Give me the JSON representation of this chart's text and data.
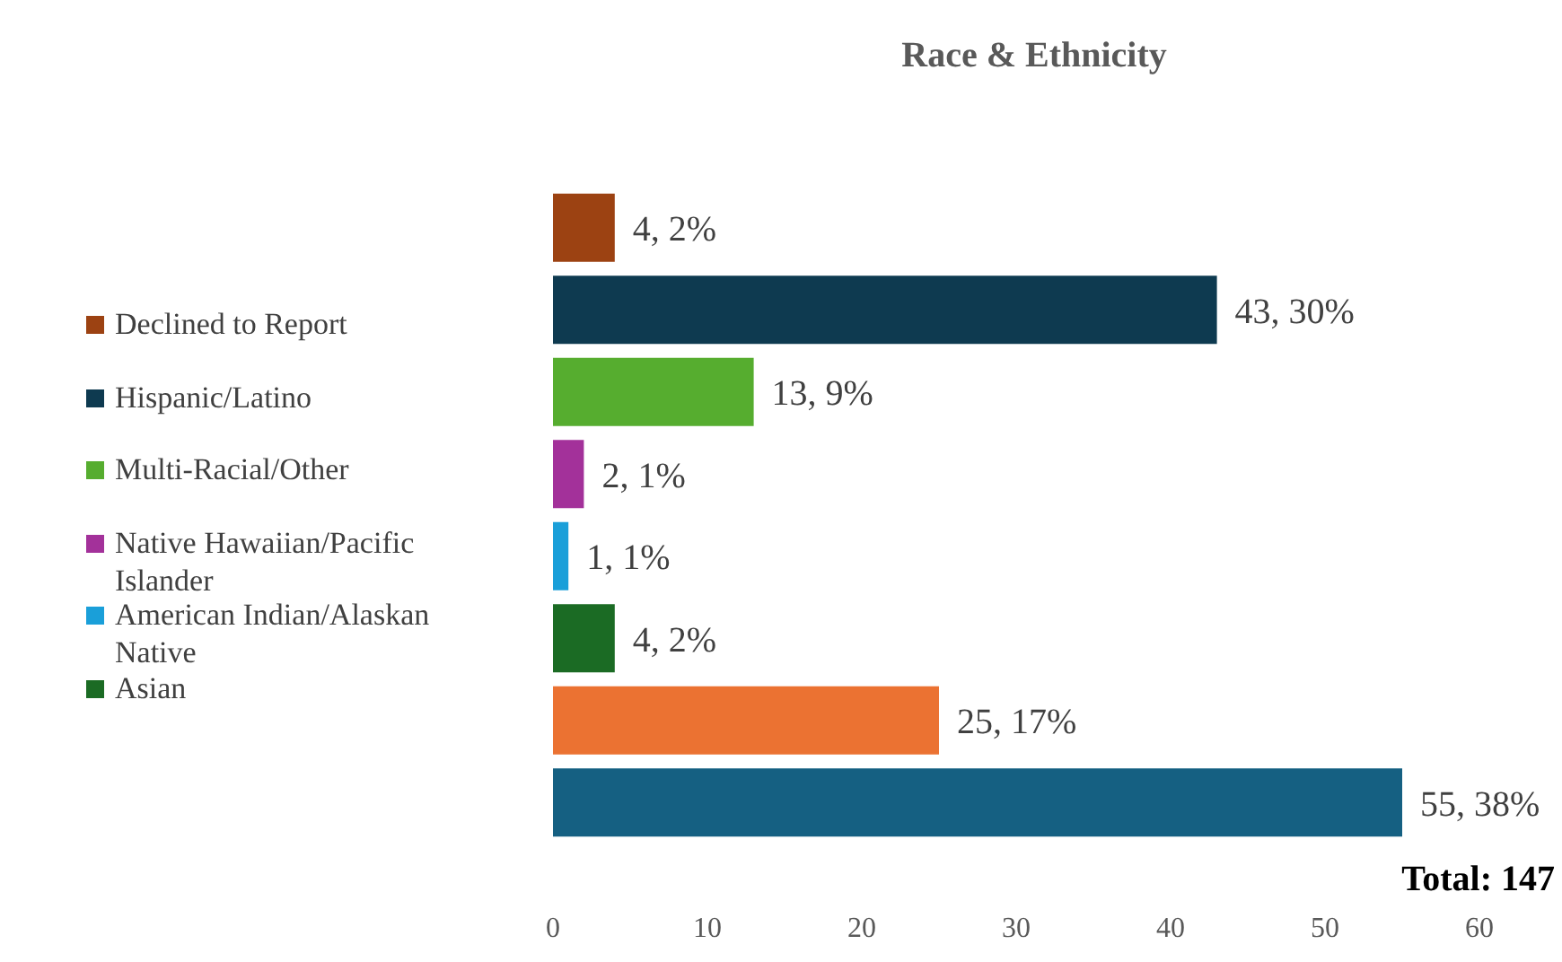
{
  "chart_data": {
    "type": "bar",
    "orientation": "horizontal",
    "stacked": true,
    "title": "Race & Ethnicity",
    "categories": [
      null,
      null,
      null,
      null,
      null,
      null,
      null,
      null
    ],
    "series": [
      {
        "name": "Declined to Report",
        "color": "#9c4212",
        "values": [
          4,
          null,
          null,
          null,
          null,
          null,
          null,
          null
        ],
        "value_labels": [
          "4, 2%",
          null,
          null,
          null,
          null,
          null,
          null,
          null
        ]
      },
      {
        "name": "Hispanic/Latino",
        "color": "#0e3a50",
        "values": [
          null,
          43,
          null,
          null,
          null,
          null,
          null,
          null
        ],
        "value_labels": [
          null,
          "43, 30%",
          null,
          null,
          null,
          null,
          null,
          null
        ]
      },
      {
        "name": "Multi-Racial/Other",
        "color": "#56ad2f",
        "values": [
          null,
          null,
          13,
          null,
          null,
          null,
          null,
          null
        ],
        "value_labels": [
          null,
          null,
          "13, 9%",
          null,
          null,
          null,
          null,
          null
        ]
      },
      {
        "name": "Native Hawaiian/Pacific Islander",
        "color": "#a3319a",
        "values": [
          null,
          null,
          null,
          2,
          null,
          null,
          null,
          null
        ],
        "value_labels": [
          null,
          null,
          null,
          "2, 1%",
          null,
          null,
          null,
          null
        ]
      },
      {
        "name": "American Indian/Alaskan Native",
        "color": "#1a9fd9",
        "values": [
          null,
          null,
          null,
          null,
          1,
          null,
          null,
          null
        ],
        "value_labels": [
          null,
          null,
          null,
          null,
          "1, 1%",
          null,
          null,
          null
        ]
      },
      {
        "name": "Asian",
        "color": "#1b6b24",
        "values": [
          null,
          null,
          null,
          null,
          null,
          4,
          null,
          null
        ],
        "value_labels": [
          null,
          null,
          null,
          null,
          null,
          "4, 2%",
          null,
          null
        ]
      },
      {
        "color": "#eb7232",
        "values": [
          null,
          null,
          null,
          null,
          null,
          null,
          25,
          null
        ],
        "value_labels": [
          null,
          null,
          null,
          null,
          null,
          null,
          "25, 17%",
          null
        ]
      },
      {
        "color": "#156082",
        "values": [
          null,
          null,
          null,
          null,
          null,
          null,
          null,
          55
        ],
        "value_labels": [
          null,
          null,
          null,
          null,
          null,
          null,
          null,
          "55, 38%"
        ]
      }
    ],
    "xlim": [
      0,
      60
    ],
    "xticks": [
      0,
      10,
      20,
      30,
      40,
      50,
      60
    ],
    "grid": false,
    "legend": "left",
    "annotations": [
      "Total: 147"
    ]
  }
}
